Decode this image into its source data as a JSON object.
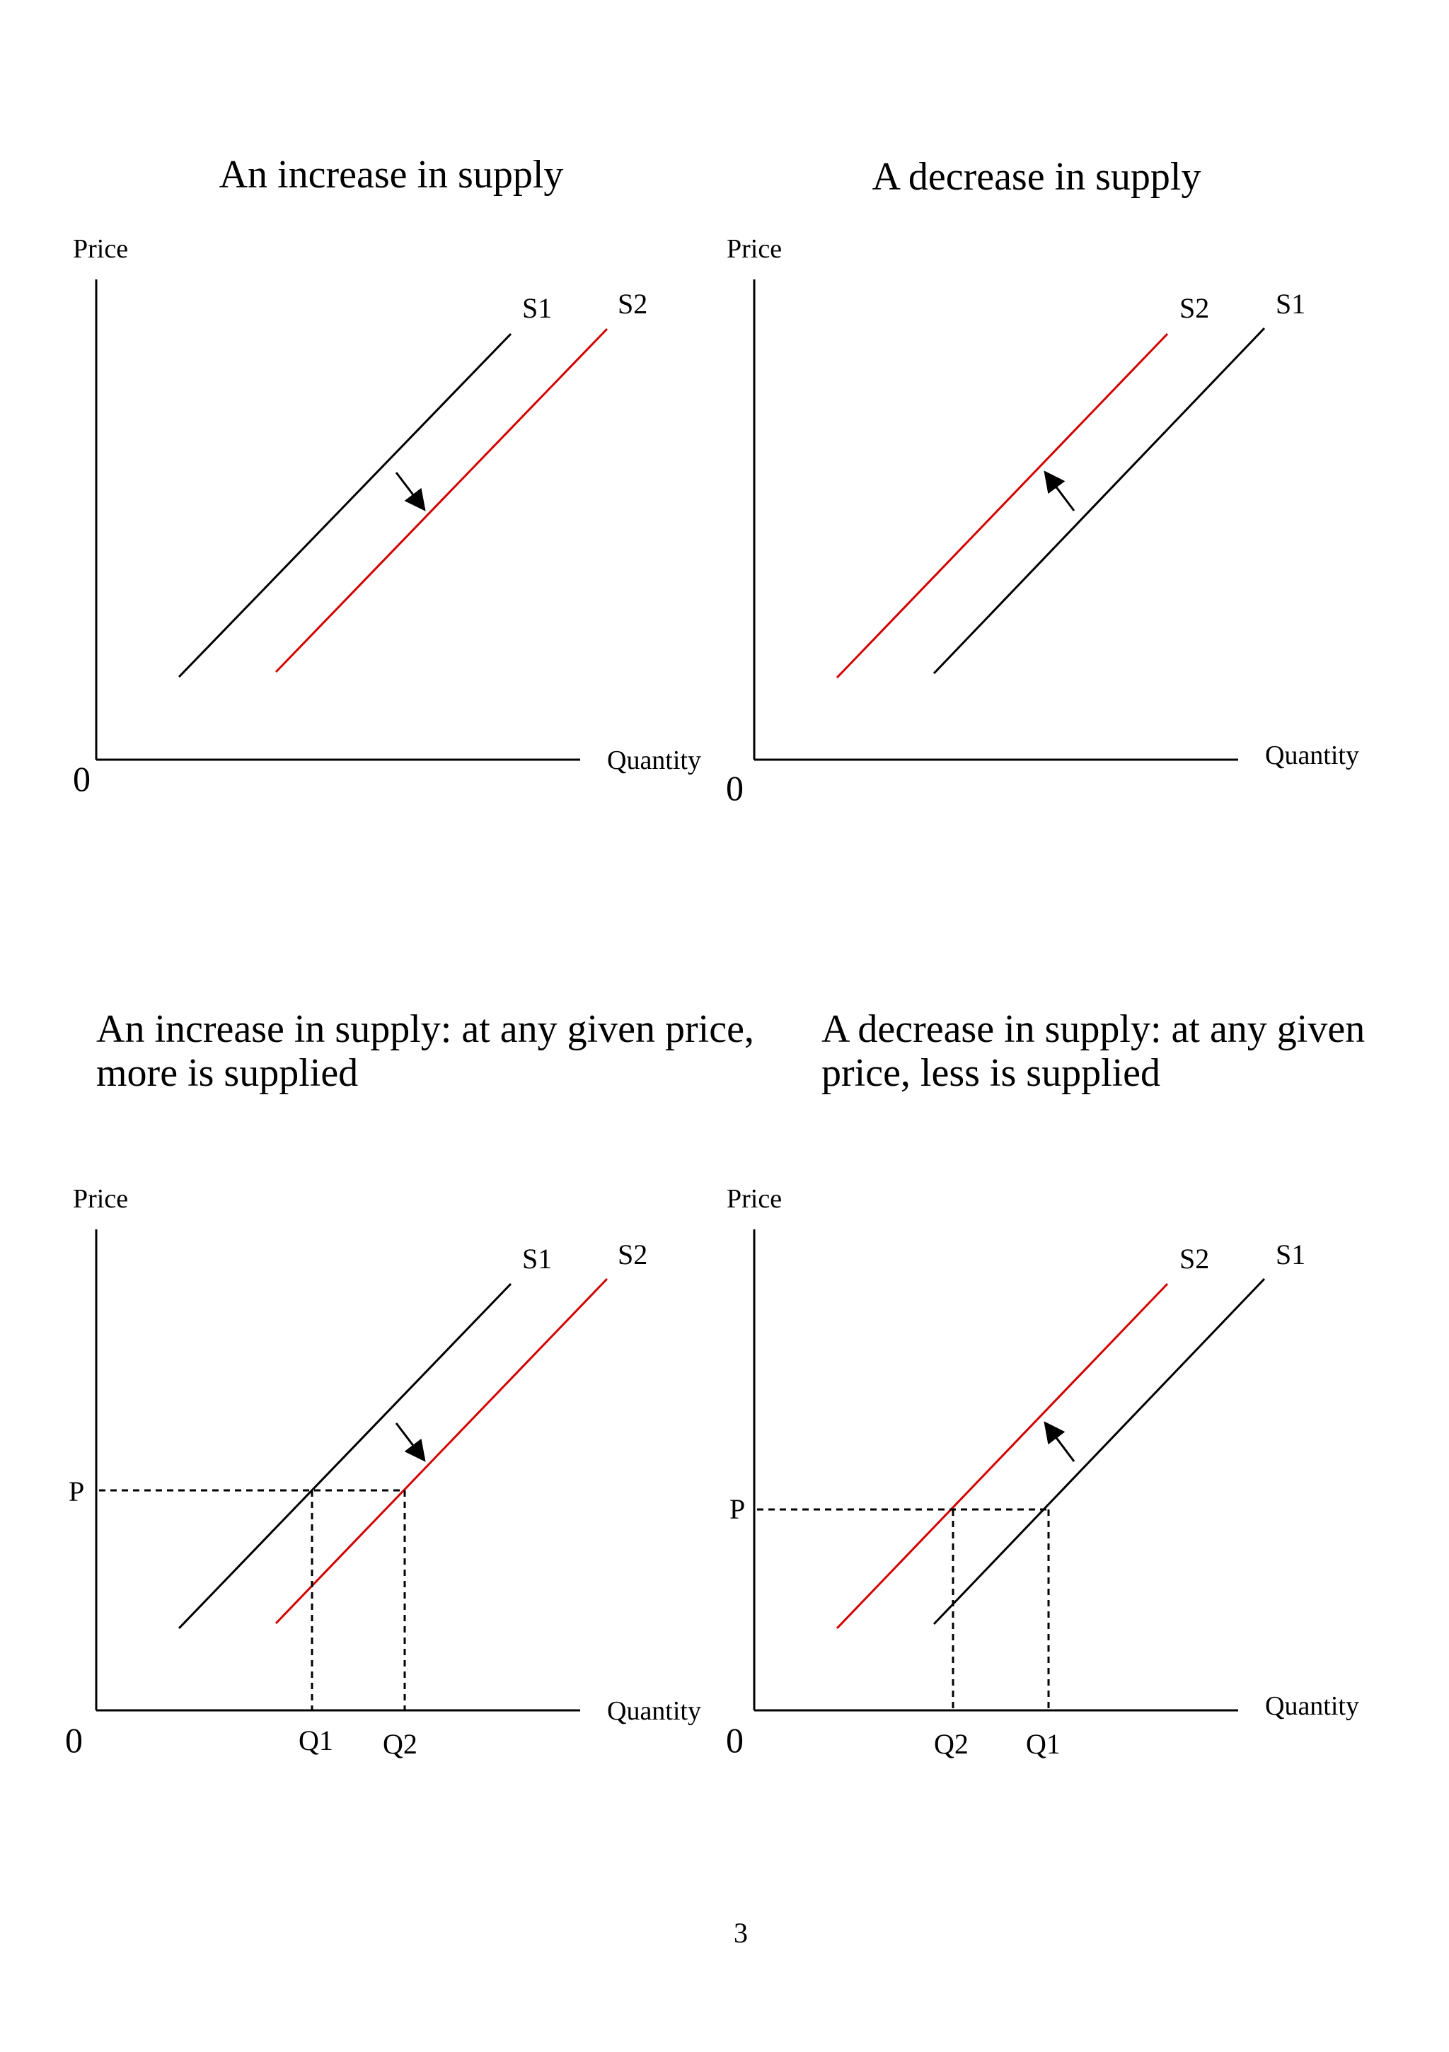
{
  "page_number": "3",
  "colors": {
    "s1": "#000000",
    "s2": "#d40000",
    "axis": "#000000"
  },
  "diagrams": [
    {
      "title": "An increase in supply",
      "y_axis": "Price",
      "x_axis": "Quantity",
      "origin": "0",
      "curve_s1": "S1",
      "curve_s2": "S2",
      "shift": "right"
    },
    {
      "title": "A decrease in supply",
      "y_axis": "Price",
      "x_axis": "Quantity",
      "origin": "0",
      "curve_s1": "S1",
      "curve_s2": "S2",
      "shift": "left"
    },
    {
      "caption_line1": "An increase in supply: at any given price,",
      "caption_line2": "more is supplied",
      "y_axis": "Price",
      "x_axis": "Quantity",
      "origin": "0",
      "curve_s1": "S1",
      "curve_s2": "S2",
      "price_label": "P",
      "q_first": "Q1",
      "q_second": "Q2",
      "shift": "right"
    },
    {
      "caption_line1": "A decrease in supply: at any given",
      "caption_line2": "price, less is supplied",
      "y_axis": "Price",
      "x_axis": "Quantity",
      "origin": "0",
      "curve_s1": "S1",
      "curve_s2": "S2",
      "price_label": "P",
      "q_first": "Q2",
      "q_second": "Q1",
      "shift": "left"
    }
  ]
}
